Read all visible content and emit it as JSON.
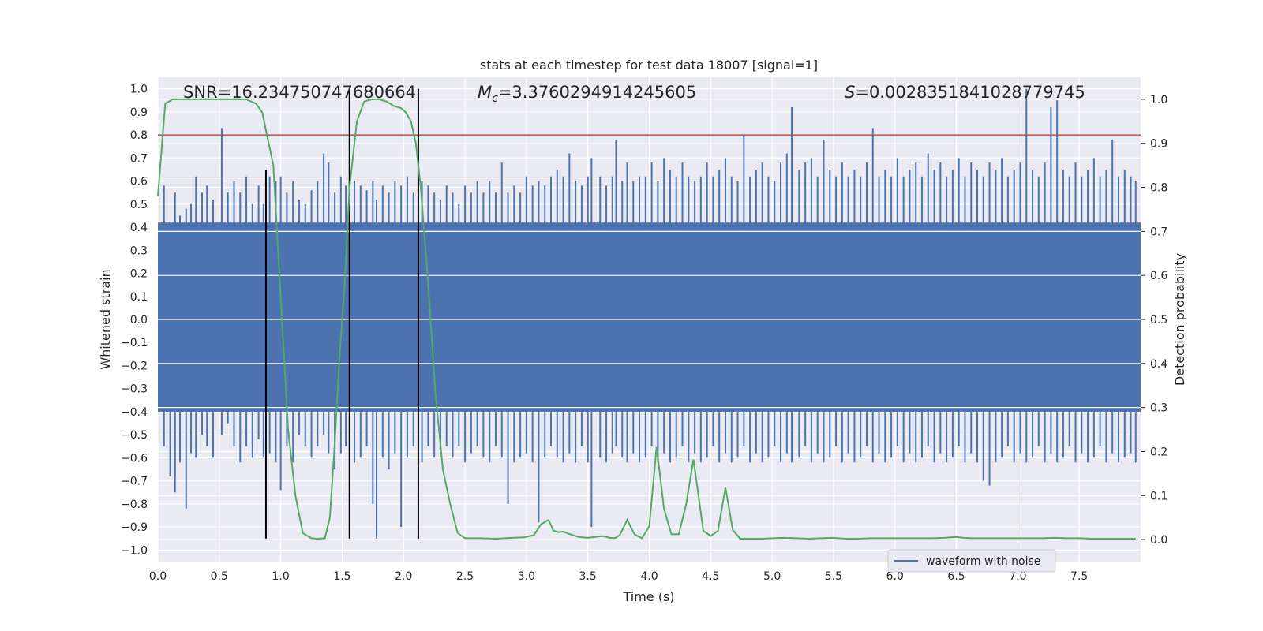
{
  "chart_data": {
    "type": "line",
    "title": "stats at each timestep for test data 18007 [signal=1]",
    "xlabel": "Time (s)",
    "ylabel": "Whitened strain",
    "ylabel_right": "Detection probability",
    "xlim": [
      0.0,
      8.0
    ],
    "ylim": [
      -1.05,
      1.05
    ],
    "ylim_right": [
      -0.05,
      1.05
    ],
    "x_ticks": [
      0.0,
      0.5,
      1.0,
      1.5,
      2.0,
      2.5,
      3.0,
      3.5,
      4.0,
      4.5,
      5.0,
      5.5,
      6.0,
      6.5,
      7.0,
      7.5
    ],
    "x_tick_labels": [
      "0.0",
      "0.5",
      "1.0",
      "1.5",
      "2.0",
      "2.5",
      "3.0",
      "3.5",
      "4.0",
      "4.5",
      "5.0",
      "5.5",
      "6.0",
      "6.5",
      "7.0",
      "7.5"
    ],
    "y_ticks": [
      1.0,
      0.9,
      0.8,
      0.7,
      0.6,
      0.5,
      0.4,
      0.3,
      0.2,
      0.1,
      0.0,
      -0.1,
      -0.2,
      -0.3,
      -0.4,
      -0.5,
      -0.6,
      -0.7,
      -0.8,
      -0.9,
      -1.0
    ],
    "y_tick_labels": [
      "1.0",
      "0.9",
      "0.8",
      "0.7",
      "0.6",
      "0.5",
      "0.4",
      "0.3",
      "0.2",
      "0.1",
      "0.0",
      "−0.1",
      "−0.2",
      "−0.3",
      "−0.4",
      "−0.5",
      "−0.6",
      "−0.7",
      "−0.8",
      "−0.9",
      "−1.0"
    ],
    "y_right_ticks": [
      1.0,
      0.9,
      0.8,
      0.7,
      0.6,
      0.5,
      0.4,
      0.3,
      0.2,
      0.1,
      0.0
    ],
    "y_right_tick_labels": [
      "1.0",
      "0.9",
      "0.8",
      "0.7",
      "0.6",
      "0.5",
      "0.4",
      "0.3",
      "0.2",
      "0.1",
      "0.0"
    ],
    "annotations": {
      "snr": "SNR=16.234750747680664",
      "mc_symbol": "M",
      "mc_sub": "c",
      "mc_value": "=3.3760294914245605",
      "s_symbol": "S",
      "s_value": "=0.0028351841028779745"
    },
    "threshold": 0.8,
    "vlines": [
      {
        "x": 0.88,
        "y": [
          -0.95,
          0.65
        ]
      },
      {
        "x": 1.56,
        "y": [
          -0.95,
          1.0
        ]
      },
      {
        "x": 2.12,
        "y": [
          -0.95,
          1.0
        ]
      }
    ],
    "waveform": {
      "name": "waveform with noise",
      "band": [
        -0.4,
        0.42
      ],
      "spikes": [
        [
          0.05,
          0.58,
          -0.55
        ],
        [
          0.1,
          0.4,
          -0.68
        ],
        [
          0.14,
          0.55,
          -0.75
        ],
        [
          0.18,
          0.45,
          -0.62
        ],
        [
          0.23,
          0.48,
          -0.82
        ],
        [
          0.27,
          0.5,
          -0.58
        ],
        [
          0.31,
          0.62,
          -0.6
        ],
        [
          0.36,
          0.55,
          -0.5
        ],
        [
          0.4,
          0.58,
          -0.55
        ],
        [
          0.45,
          0.52,
          -0.6
        ],
        [
          0.52,
          0.83,
          -0.5
        ],
        [
          0.57,
          0.55,
          -0.45
        ],
        [
          0.62,
          0.6,
          -0.55
        ],
        [
          0.67,
          0.55,
          -0.62
        ],
        [
          0.72,
          0.62,
          -0.55
        ],
        [
          0.77,
          0.5,
          -0.6
        ],
        [
          0.82,
          0.58,
          -0.52
        ],
        [
          0.86,
          0.5,
          -0.6
        ],
        [
          0.91,
          0.62,
          -0.58
        ],
        [
          0.96,
          0.6,
          -0.62
        ],
        [
          1.0,
          0.62,
          -0.74
        ],
        [
          1.05,
          0.55,
          -0.55
        ],
        [
          1.1,
          0.6,
          -0.62
        ],
        [
          1.15,
          0.52,
          -0.5
        ],
        [
          1.2,
          0.5,
          -0.55
        ],
        [
          1.25,
          0.56,
          -0.6
        ],
        [
          1.3,
          0.6,
          -0.55
        ],
        [
          1.35,
          0.72,
          -0.5
        ],
        [
          1.39,
          0.68,
          -0.58
        ],
        [
          1.44,
          0.55,
          -0.65
        ],
        [
          1.49,
          0.62,
          -0.58
        ],
        [
          1.53,
          0.58,
          -0.55
        ],
        [
          1.6,
          0.6,
          -0.62
        ],
        [
          1.65,
          0.58,
          -0.6
        ],
        [
          1.7,
          0.56,
          -0.55
        ],
        [
          1.75,
          0.6,
          -0.8
        ],
        [
          1.78,
          0.52,
          -0.95
        ],
        [
          1.83,
          0.58,
          -0.6
        ],
        [
          1.88,
          0.55,
          -0.65
        ],
        [
          1.93,
          0.6,
          -0.58
        ],
        [
          1.98,
          0.58,
          -0.9
        ],
        [
          2.03,
          0.62,
          -0.6
        ],
        [
          2.08,
          0.55,
          -0.55
        ],
        [
          2.15,
          0.6,
          -0.62
        ],
        [
          2.2,
          0.58,
          -0.55
        ],
        [
          2.25,
          0.55,
          -0.6
        ],
        [
          2.3,
          0.52,
          -0.58
        ],
        [
          2.35,
          0.58,
          -0.55
        ],
        [
          2.4,
          0.55,
          -0.6
        ],
        [
          2.45,
          0.5,
          -0.55
        ],
        [
          2.5,
          0.58,
          -0.62
        ],
        [
          2.55,
          0.55,
          -0.58
        ],
        [
          2.6,
          0.6,
          -0.55
        ],
        [
          2.65,
          0.55,
          -0.6
        ],
        [
          2.7,
          0.6,
          -0.62
        ],
        [
          2.75,
          0.55,
          -0.55
        ],
        [
          2.8,
          0.68,
          -0.6
        ],
        [
          2.85,
          0.55,
          -0.8
        ],
        [
          2.9,
          0.58,
          -0.62
        ],
        [
          2.95,
          0.55,
          -0.6
        ],
        [
          3.0,
          0.62,
          -0.58
        ],
        [
          3.05,
          0.58,
          -0.62
        ],
        [
          3.1,
          0.6,
          -0.88
        ],
        [
          3.15,
          0.58,
          -0.6
        ],
        [
          3.2,
          0.62,
          -0.55
        ],
        [
          3.25,
          0.65,
          -0.6
        ],
        [
          3.3,
          0.62,
          -0.62
        ],
        [
          3.35,
          0.72,
          -0.58
        ],
        [
          3.4,
          0.6,
          -0.62
        ],
        [
          3.45,
          0.58,
          -0.55
        ],
        [
          3.5,
          0.62,
          -0.62
        ],
        [
          3.53,
          0.7,
          -0.9
        ],
        [
          3.6,
          0.62,
          -0.6
        ],
        [
          3.65,
          0.58,
          -0.62
        ],
        [
          3.7,
          0.62,
          -0.58
        ],
        [
          3.73,
          0.78,
          -0.55
        ],
        [
          3.78,
          0.6,
          -0.6
        ],
        [
          3.82,
          0.68,
          -0.62
        ],
        [
          3.87,
          0.6,
          -0.58
        ],
        [
          3.92,
          0.62,
          -0.62
        ],
        [
          3.97,
          0.62,
          -0.6
        ],
        [
          4.02,
          0.68,
          -0.55
        ],
        [
          4.07,
          0.6,
          -0.62
        ],
        [
          4.12,
          0.7,
          -0.58
        ],
        [
          4.17,
          0.65,
          -0.62
        ],
        [
          4.22,
          0.62,
          -0.6
        ],
        [
          4.27,
          0.68,
          -0.55
        ],
        [
          4.32,
          0.62,
          -0.62
        ],
        [
          4.37,
          0.6,
          -0.58
        ],
        [
          4.42,
          0.62,
          -0.62
        ],
        [
          4.47,
          0.68,
          -0.6
        ],
        [
          4.52,
          0.62,
          -0.55
        ],
        [
          4.57,
          0.65,
          -0.62
        ],
        [
          4.62,
          0.7,
          -0.58
        ],
        [
          4.67,
          0.62,
          -0.62
        ],
        [
          4.72,
          0.6,
          -0.6
        ],
        [
          4.77,
          0.8,
          -0.55
        ],
        [
          4.82,
          0.62,
          -0.62
        ],
        [
          4.87,
          0.65,
          -0.58
        ],
        [
          4.92,
          0.68,
          -0.62
        ],
        [
          4.97,
          0.62,
          -0.6
        ],
        [
          5.02,
          0.6,
          -0.55
        ],
        [
          5.07,
          0.68,
          -0.62
        ],
        [
          5.12,
          0.72,
          -0.58
        ],
        [
          5.16,
          0.92,
          -0.62
        ],
        [
          5.22,
          0.65,
          -0.6
        ],
        [
          5.27,
          0.68,
          -0.55
        ],
        [
          5.32,
          0.7,
          -0.62
        ],
        [
          5.37,
          0.62,
          -0.58
        ],
        [
          5.42,
          0.78,
          -0.62
        ],
        [
          5.47,
          0.65,
          -0.6
        ],
        [
          5.52,
          0.62,
          -0.55
        ],
        [
          5.57,
          0.68,
          -0.62
        ],
        [
          5.62,
          0.62,
          -0.58
        ],
        [
          5.67,
          0.65,
          -0.62
        ],
        [
          5.72,
          0.62,
          -0.6
        ],
        [
          5.77,
          0.68,
          -0.55
        ],
        [
          5.82,
          0.83,
          -0.62
        ],
        [
          5.87,
          0.62,
          -0.58
        ],
        [
          5.92,
          0.65,
          -0.62
        ],
        [
          5.97,
          0.62,
          -0.6
        ],
        [
          6.02,
          0.7,
          -0.55
        ],
        [
          6.07,
          0.62,
          -0.62
        ],
        [
          6.12,
          0.65,
          -0.58
        ],
        [
          6.17,
          0.68,
          -0.62
        ],
        [
          6.22,
          0.62,
          -0.6
        ],
        [
          6.27,
          0.72,
          -0.55
        ],
        [
          6.32,
          0.65,
          -0.62
        ],
        [
          6.37,
          0.68,
          -0.58
        ],
        [
          6.42,
          0.62,
          -0.62
        ],
        [
          6.47,
          0.65,
          -0.6
        ],
        [
          6.52,
          0.7,
          -0.55
        ],
        [
          6.57,
          0.62,
          -0.62
        ],
        [
          6.62,
          0.68,
          -0.58
        ],
        [
          6.67,
          0.65,
          -0.62
        ],
        [
          6.72,
          0.62,
          -0.7
        ],
        [
          6.77,
          0.68,
          -0.72
        ],
        [
          6.82,
          0.65,
          -0.62
        ],
        [
          6.87,
          0.7,
          -0.6
        ],
        [
          6.92,
          0.62,
          -0.55
        ],
        [
          6.97,
          0.65,
          -0.62
        ],
        [
          7.02,
          0.68,
          -0.58
        ],
        [
          7.07,
          1.0,
          -0.62
        ],
        [
          7.12,
          0.65,
          -0.6
        ],
        [
          7.17,
          0.62,
          -0.55
        ],
        [
          7.22,
          0.68,
          -0.62
        ],
        [
          7.27,
          0.92,
          -0.58
        ],
        [
          7.32,
          0.95,
          -0.62
        ],
        [
          7.37,
          0.65,
          -0.6
        ],
        [
          7.42,
          0.62,
          -0.55
        ],
        [
          7.47,
          0.68,
          -0.62
        ],
        [
          7.52,
          0.62,
          -0.58
        ],
        [
          7.57,
          0.65,
          -0.62
        ],
        [
          7.62,
          0.7,
          -0.6
        ],
        [
          7.67,
          0.62,
          -0.55
        ],
        [
          7.72,
          0.65,
          -0.62
        ],
        [
          7.77,
          0.78,
          -0.58
        ],
        [
          7.82,
          0.62,
          -0.62
        ],
        [
          7.87,
          0.65,
          -0.6
        ],
        [
          7.92,
          0.62,
          -0.58
        ],
        [
          7.96,
          0.6,
          -0.62
        ]
      ]
    },
    "detection_probability": {
      "x": [
        0.0,
        0.06,
        0.12,
        0.2,
        0.4,
        0.6,
        0.72,
        0.8,
        0.85,
        0.88,
        0.94,
        1.0,
        1.06,
        1.12,
        1.18,
        1.25,
        1.3,
        1.36,
        1.4,
        1.44,
        1.48,
        1.52,
        1.56,
        1.62,
        1.68,
        1.74,
        1.8,
        1.86,
        1.92,
        1.98,
        2.02,
        2.06,
        2.1,
        2.14,
        2.2,
        2.26,
        2.32,
        2.38,
        2.44,
        2.5,
        2.62,
        2.75,
        2.88,
        2.98,
        3.06,
        3.12,
        3.18,
        3.22,
        3.26,
        3.3,
        3.36,
        3.42,
        3.5,
        3.56,
        3.62,
        3.68,
        3.72,
        3.76,
        3.82,
        3.88,
        3.94,
        4.0,
        4.06,
        4.12,
        4.18,
        4.24,
        4.3,
        4.36,
        4.44,
        4.5,
        4.56,
        4.62,
        4.68,
        4.74,
        4.8,
        4.86,
        4.92,
        5.0,
        5.1,
        5.2,
        5.3,
        5.4,
        5.5,
        5.6,
        5.7,
        5.8,
        5.9,
        6.0,
        6.1,
        6.2,
        6.3,
        6.4,
        6.5,
        6.56,
        6.62,
        6.7,
        6.8,
        6.9,
        7.0,
        7.1,
        7.2,
        7.3,
        7.4,
        7.5,
        7.6,
        7.7,
        7.8,
        7.9,
        7.96
      ],
      "y": [
        0.78,
        0.99,
        1.0,
        1.0,
        1.0,
        1.0,
        1.0,
        0.99,
        0.97,
        0.93,
        0.85,
        0.55,
        0.25,
        0.1,
        0.015,
        0.003,
        0.002,
        0.003,
        0.05,
        0.22,
        0.42,
        0.58,
        0.8,
        0.95,
        0.995,
        1.0,
        1.0,
        0.995,
        0.985,
        0.98,
        0.97,
        0.95,
        0.9,
        0.8,
        0.58,
        0.33,
        0.16,
        0.08,
        0.015,
        0.003,
        0.003,
        0.002,
        0.004,
        0.005,
        0.01,
        0.035,
        0.045,
        0.02,
        0.017,
        0.018,
        0.012,
        0.006,
        0.004,
        0.006,
        0.008,
        0.004,
        0.003,
        0.01,
        0.045,
        0.012,
        0.003,
        0.03,
        0.21,
        0.07,
        0.012,
        0.012,
        0.08,
        0.182,
        0.02,
        0.008,
        0.02,
        0.118,
        0.022,
        0.002,
        0.002,
        0.002,
        0.002,
        0.003,
        0.004,
        0.003,
        0.002,
        0.003,
        0.004,
        0.002,
        0.002,
        0.003,
        0.003,
        0.003,
        0.003,
        0.003,
        0.003,
        0.004,
        0.006,
        0.004,
        0.003,
        0.003,
        0.003,
        0.003,
        0.003,
        0.003,
        0.003,
        0.004,
        0.003,
        0.003,
        0.002,
        0.002,
        0.002,
        0.002,
        0.002
      ]
    },
    "legend": {
      "label": "waveform with noise",
      "loc": "lower-right"
    }
  },
  "colors": {
    "axes_bg": "#eaeaf2",
    "grid": "#ffffff",
    "waveform": "#4c72b0",
    "prob": "#55a868",
    "threshold": "#c44e52",
    "vline": "#000000",
    "text": "#262626"
  }
}
